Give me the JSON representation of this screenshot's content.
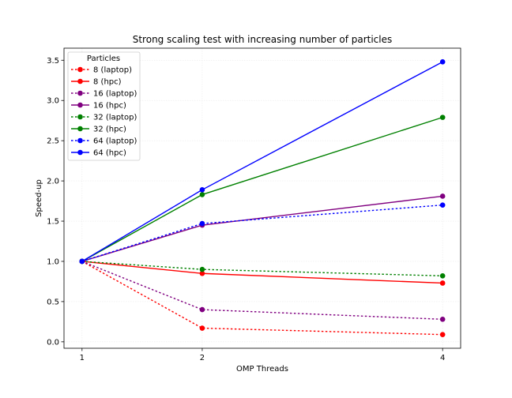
{
  "chart_data": {
    "type": "line",
    "title": "Strong scaling test with increasing number of particles",
    "xlabel": "OMP Threads",
    "ylabel": "Speed-up",
    "x": [
      1,
      2,
      4
    ],
    "xticks": [
      "1",
      "2",
      "4"
    ],
    "yticks": [
      "0.0",
      "0.5",
      "1.0",
      "1.5",
      "2.0",
      "2.5",
      "3.0",
      "3.5"
    ],
    "xlim": [
      0.85,
      4.15
    ],
    "ylim": [
      -0.08,
      3.65
    ],
    "grid": true,
    "legend": {
      "title": "Particles",
      "placement": "top-left"
    },
    "series": [
      {
        "name": "8 (laptop)",
        "values": [
          1.0,
          0.17,
          0.09
        ],
        "color": "#ff0000",
        "dashed": true
      },
      {
        "name": "8 (hpc)",
        "values": [
          1.0,
          0.85,
          0.73
        ],
        "color": "#ff0000",
        "dashed": false
      },
      {
        "name": "16 (laptop)",
        "values": [
          1.0,
          0.4,
          0.28
        ],
        "color": "#800080",
        "dashed": true
      },
      {
        "name": "16 (hpc)",
        "values": [
          1.0,
          1.45,
          1.81
        ],
        "color": "#800080",
        "dashed": false
      },
      {
        "name": "32 (laptop)",
        "values": [
          1.0,
          0.9,
          0.82
        ],
        "color": "#008000",
        "dashed": true
      },
      {
        "name": "32 (hpc)",
        "values": [
          1.0,
          1.83,
          2.79
        ],
        "color": "#008000",
        "dashed": false
      },
      {
        "name": "64 (laptop)",
        "values": [
          1.0,
          1.47,
          1.7
        ],
        "color": "#0000ff",
        "dashed": true
      },
      {
        "name": "64 (hpc)",
        "values": [
          1.0,
          1.89,
          3.48
        ],
        "color": "#0000ff",
        "dashed": false
      }
    ]
  }
}
